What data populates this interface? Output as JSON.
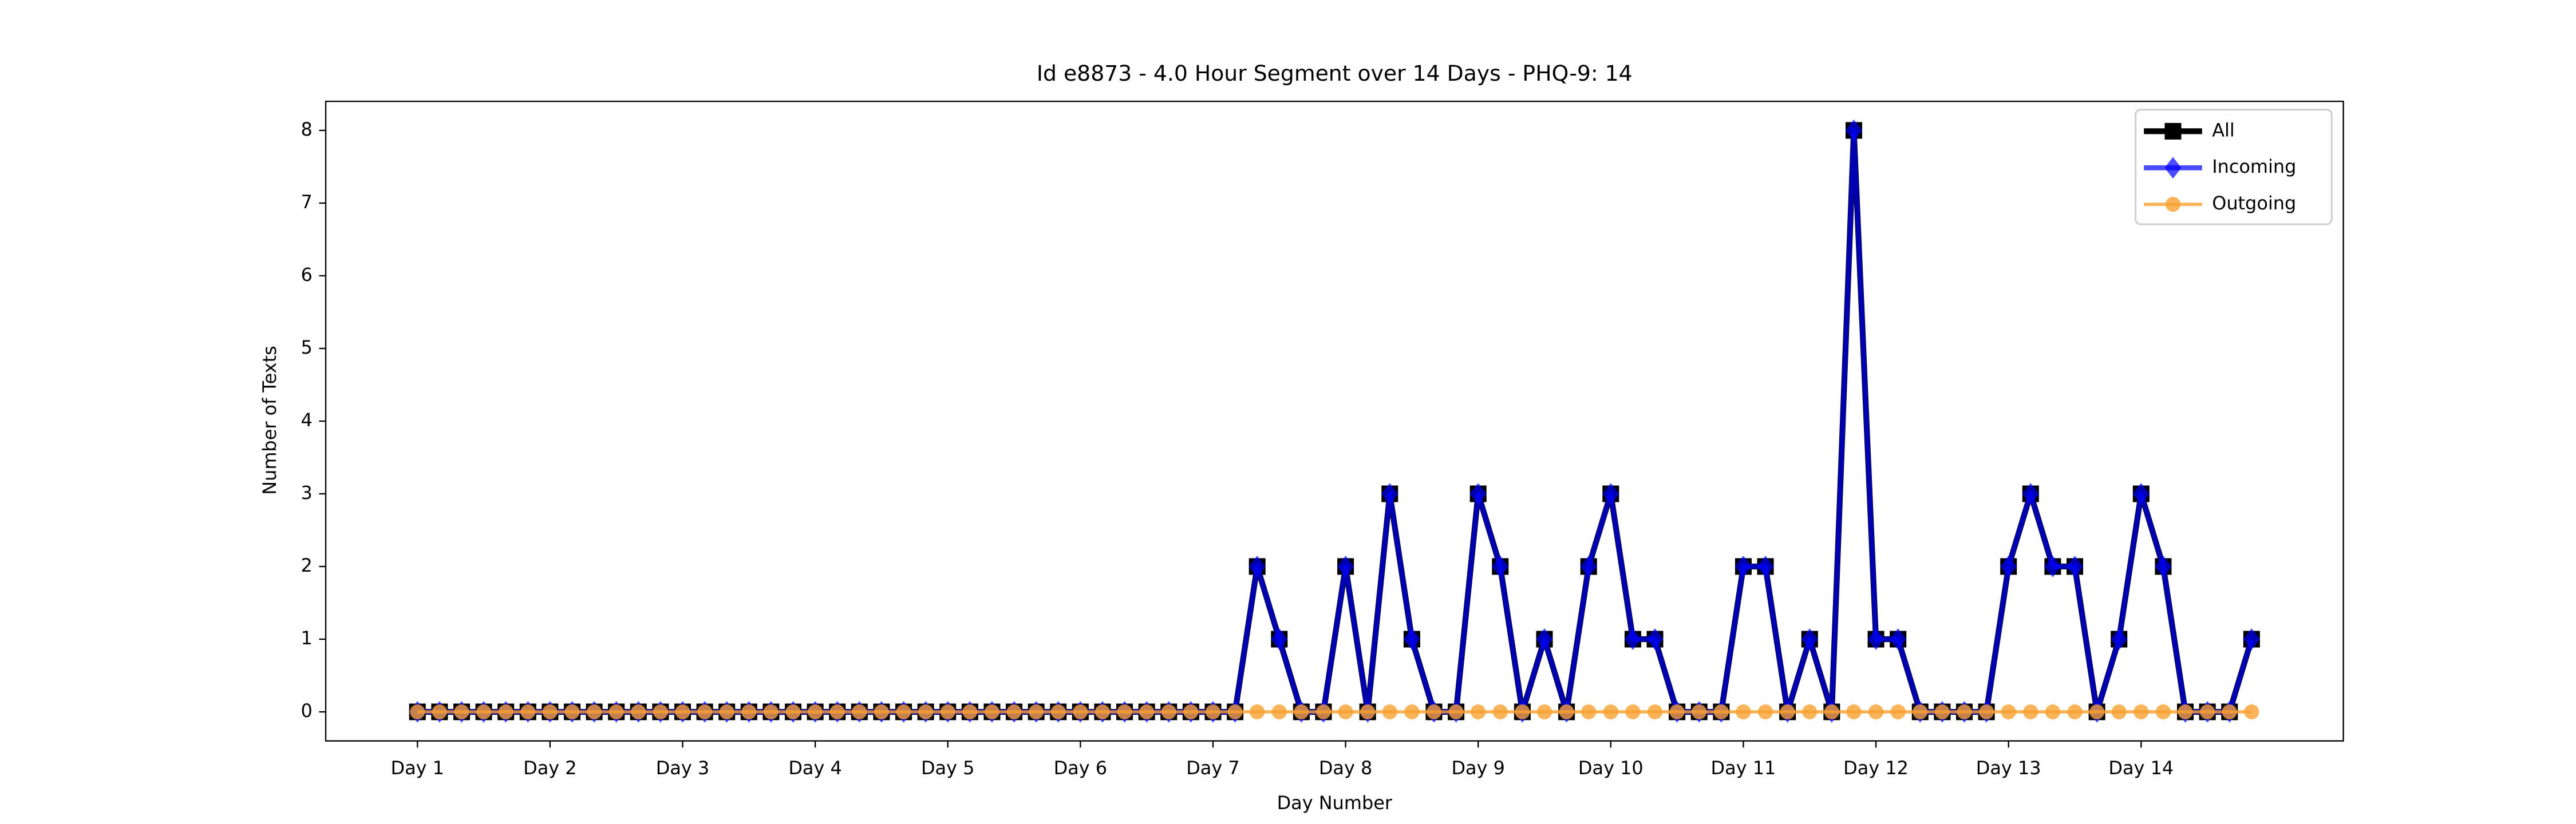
{
  "chart_data": {
    "type": "line",
    "title": "Id e8873 - 4.0 Hour Segment over 14 Days - PHQ-9: 14",
    "xlabel": "Day Number",
    "ylabel": "Number of Texts",
    "categories": [
      "Day 1",
      null,
      null,
      null,
      null,
      null,
      "Day 2",
      null,
      null,
      null,
      null,
      null,
      "Day 3",
      null,
      null,
      null,
      null,
      null,
      "Day 4",
      null,
      null,
      null,
      null,
      null,
      "Day 5",
      null,
      null,
      null,
      null,
      null,
      "Day 6",
      null,
      null,
      null,
      null,
      null,
      "Day 7",
      null,
      null,
      null,
      null,
      null,
      "Day 8",
      null,
      null,
      null,
      null,
      null,
      "Day 9",
      null,
      null,
      null,
      null,
      null,
      "Day 10",
      null,
      null,
      null,
      null,
      null,
      "Day 11",
      null,
      null,
      null,
      null,
      null,
      "Day 12",
      null,
      null,
      null,
      null,
      null,
      "Day 13",
      null,
      null,
      null,
      null,
      null,
      "Day 14",
      null,
      null,
      null,
      null,
      null
    ],
    "series": [
      {
        "name": "All",
        "color": "#000000",
        "marker": "square",
        "values": [
          0,
          0,
          0,
          0,
          0,
          0,
          0,
          0,
          0,
          0,
          0,
          0,
          0,
          0,
          0,
          0,
          0,
          0,
          0,
          0,
          0,
          0,
          0,
          0,
          0,
          0,
          0,
          0,
          0,
          0,
          0,
          0,
          0,
          0,
          0,
          0,
          0,
          0,
          2,
          1,
          0,
          0,
          2,
          0,
          3,
          1,
          0,
          0,
          3,
          2,
          0,
          1,
          0,
          2,
          3,
          1,
          1,
          0,
          0,
          0,
          2,
          2,
          0,
          1,
          0,
          8,
          1,
          1,
          0,
          0,
          0,
          0,
          2,
          3,
          2,
          2,
          0,
          1,
          3,
          2,
          0,
          0,
          0,
          1
        ]
      },
      {
        "name": "Incoming",
        "color": "#0000ff",
        "marker": "diamond",
        "values": [
          0,
          0,
          0,
          0,
          0,
          0,
          0,
          0,
          0,
          0,
          0,
          0,
          0,
          0,
          0,
          0,
          0,
          0,
          0,
          0,
          0,
          0,
          0,
          0,
          0,
          0,
          0,
          0,
          0,
          0,
          0,
          0,
          0,
          0,
          0,
          0,
          0,
          0,
          2,
          1,
          0,
          0,
          2,
          0,
          3,
          1,
          0,
          0,
          3,
          2,
          0,
          1,
          0,
          2,
          3,
          1,
          1,
          0,
          0,
          0,
          2,
          2,
          0,
          1,
          0,
          8,
          1,
          1,
          0,
          0,
          0,
          0,
          2,
          3,
          2,
          2,
          0,
          1,
          3,
          2,
          0,
          0,
          0,
          1
        ]
      },
      {
        "name": "Outgoing",
        "color": "#f7a030",
        "marker": "circle",
        "values": [
          0,
          0,
          0,
          0,
          0,
          0,
          0,
          0,
          0,
          0,
          0,
          0,
          0,
          0,
          0,
          0,
          0,
          0,
          0,
          0,
          0,
          0,
          0,
          0,
          0,
          0,
          0,
          0,
          0,
          0,
          0,
          0,
          0,
          0,
          0,
          0,
          0,
          0,
          0,
          0,
          0,
          0,
          0,
          0,
          0,
          0,
          0,
          0,
          0,
          0,
          0,
          0,
          0,
          0,
          0,
          0,
          0,
          0,
          0,
          0,
          0,
          0,
          0,
          0,
          0,
          0,
          0,
          0,
          0,
          0,
          0,
          0,
          0,
          0,
          0,
          0,
          0,
          0,
          0,
          0,
          0,
          0,
          0,
          0
        ]
      }
    ],
    "xlim": [
      -4.15,
      87.15
    ],
    "ylim": [
      -0.4,
      8.4
    ],
    "yticks": [
      0,
      1,
      2,
      3,
      4,
      5,
      6,
      7,
      8
    ],
    "legend": "upper right",
    "grid": false
  }
}
